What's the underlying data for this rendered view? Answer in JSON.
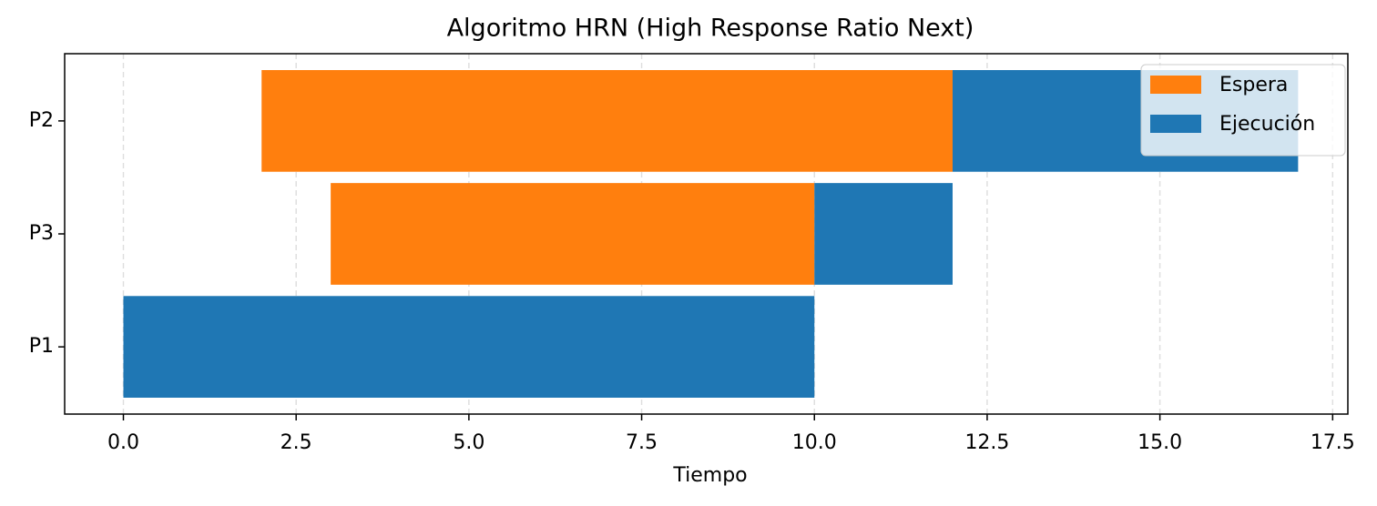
{
  "chart_data": {
    "type": "gantt",
    "title": "Algoritmo HRN (High Response Ratio Next)",
    "x_label": "Tiempo",
    "categories": [
      "P1",
      "P3",
      "P2"
    ],
    "start": [
      0,
      3,
      2
    ],
    "series": [
      {
        "name": "Espera",
        "color": "#ff7f0e",
        "values": [
          0,
          7,
          10
        ]
      },
      {
        "name": "Ejecución",
        "color": "#1f77b4",
        "values": [
          10,
          2,
          5
        ]
      }
    ],
    "xlim": [
      -0.85,
      17.72
    ],
    "xticks": [
      {
        "value": 0,
        "label": "0.0"
      },
      {
        "value": 2.5,
        "label": "2.5"
      },
      {
        "value": 5,
        "label": "5.0"
      },
      {
        "value": 7.5,
        "label": "7.5"
      },
      {
        "value": 10,
        "label": "10.0"
      },
      {
        "value": 12.5,
        "label": "12.5"
      },
      {
        "value": 15,
        "label": "15.0"
      },
      {
        "value": 17.5,
        "label": "17.5"
      }
    ],
    "grid": true,
    "legend": "upper right"
  }
}
